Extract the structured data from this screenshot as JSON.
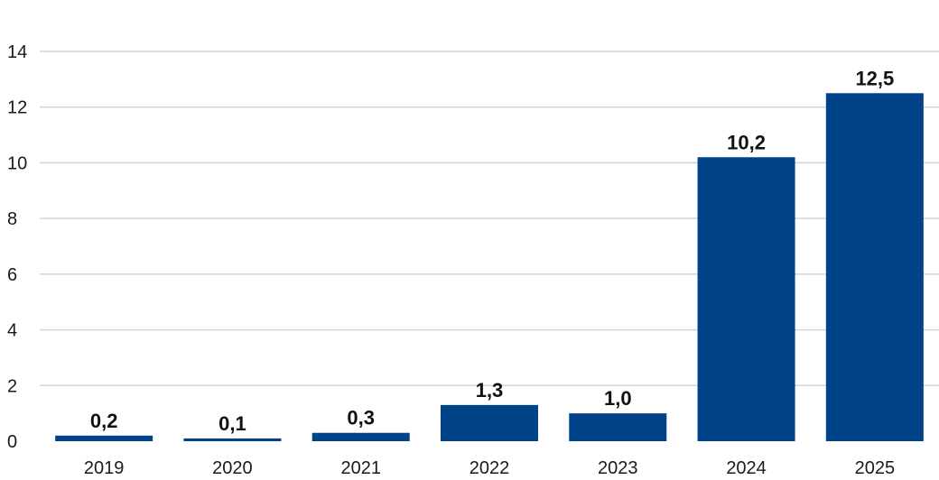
{
  "colors": {
    "bar": "#004388",
    "grid": "#d3d3d3",
    "background": "#ffffff"
  },
  "chart_data": {
    "type": "bar",
    "title": "",
    "xlabel": "",
    "ylabel": "",
    "categories": [
      "2019",
      "2020",
      "2021",
      "2022",
      "2023",
      "2024",
      "2025"
    ],
    "values": [
      0.2,
      0.1,
      0.3,
      1.3,
      1.0,
      10.2,
      12.5
    ],
    "data_labels": [
      "0,2",
      "0,1",
      "0,3",
      "1,3",
      "1,0",
      "10,2",
      "12,5"
    ],
    "ylim": [
      0,
      14
    ],
    "yticks": [
      0,
      2,
      4,
      6,
      8,
      10,
      12,
      14
    ],
    "ytick_labels": [
      "0",
      "2",
      "4",
      "6",
      "8",
      "10",
      "12",
      "14"
    ],
    "grid": true,
    "legend": "none"
  }
}
